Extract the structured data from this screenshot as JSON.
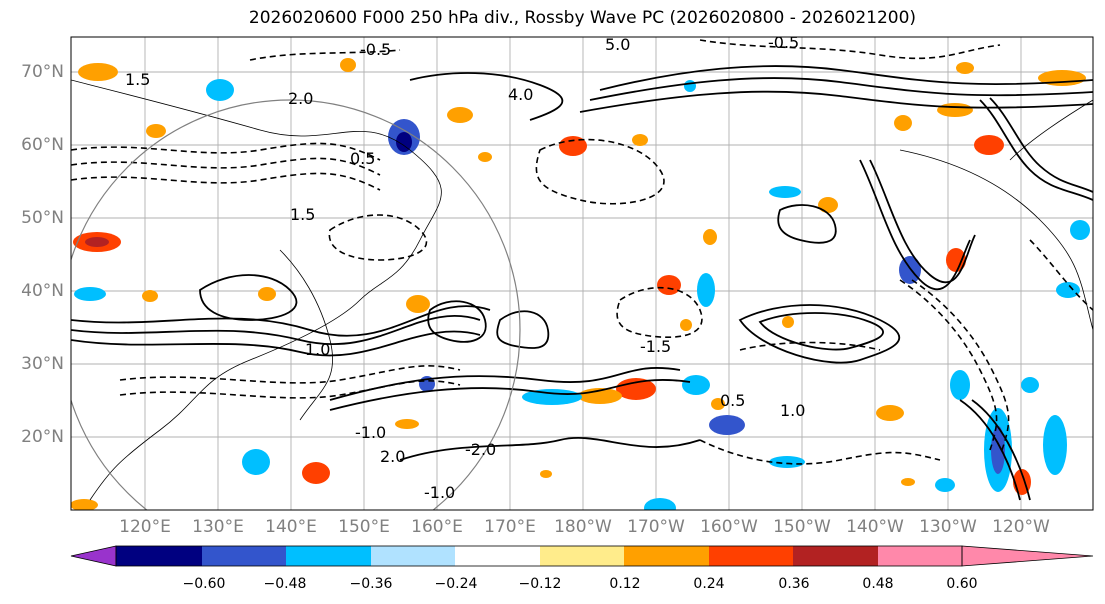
{
  "title": "2026020600 F000 250 hPa div., Rossby Wave PC (2026020800 - 2026021200)",
  "map": {
    "lat_labels": [
      "70°N",
      "60°N",
      "50°N",
      "40°N",
      "30°N",
      "20°N"
    ],
    "lon_labels": [
      "120°E",
      "130°E",
      "140°E",
      "150°E",
      "160°E",
      "170°E",
      "180°W",
      "170°W",
      "160°W",
      "150°W",
      "140°W",
      "130°W",
      "120°W"
    ],
    "lat_range": [
      10,
      75
    ],
    "lon_range_east": [
      110,
      250
    ],
    "gridlines": true,
    "contour_labels": [
      "5.0",
      "4.0",
      "2.0",
      "1.5",
      "1.0",
      "0.5",
      "-0.5",
      "-2.0",
      "-1.5",
      "-1.0",
      "2.0",
      "1.0",
      "0.5",
      "1.5",
      "-0.5",
      "-1.0"
    ],
    "negative_contours_dashed": true
  },
  "colorbar": {
    "colors": [
      "#9933cc",
      "#000080",
      "#3355cc",
      "#00bfff",
      "#b0e2ff",
      "#ffffff",
      "#ffec8b",
      "#ffa000",
      "#ff4000",
      "#b22222",
      "#ff88aa"
    ],
    "ticks": [
      "−0.60",
      "−0.48",
      "−0.36",
      "−0.24",
      "−0.12",
      "0.12",
      "0.24",
      "0.36",
      "0.48",
      "0.60"
    ],
    "extend": "both"
  }
}
